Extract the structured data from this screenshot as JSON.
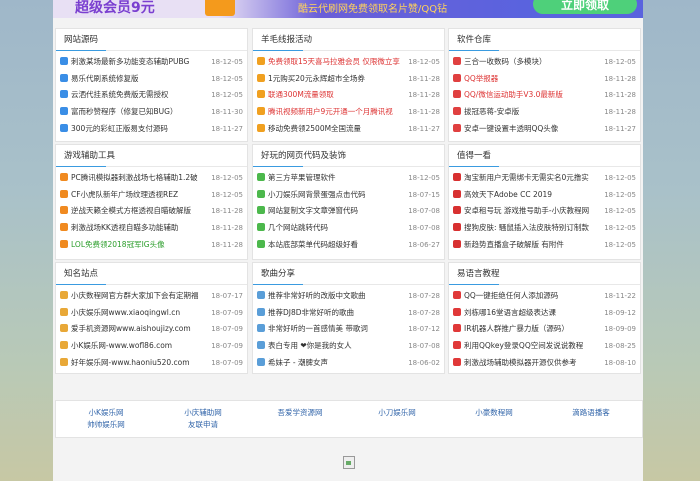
{
  "banner": {
    "title": "超级会员9元",
    "text": "酷云代刷网免费领取名片赞/QQ钻",
    "button": "立即领取"
  },
  "panels": [
    {
      "title": "网站源码",
      "icon": "#3a8ee6",
      "items": [
        {
          "text": "刺激某场最新多功能变态辅助PUBG",
          "date": "18-12-05"
        },
        {
          "text": "易乐代刷系统修复版",
          "date": "18-12-05"
        },
        {
          "text": "云洒代挂系统免费版无需授权",
          "date": "18-12-05"
        },
        {
          "text": "富而秒赞程序（修复已知BUG）",
          "date": "18-11-30"
        },
        {
          "text": "300元的彩虹正版易支付源码",
          "date": "18-11-27"
        }
      ]
    },
    {
      "title": "羊毛线报活动",
      "icon": "#f0a020",
      "items": [
        {
          "text": "免费领取15天喜马拉雅会员 仅限微立享",
          "date": "18-12-05",
          "color": "#d33"
        },
        {
          "text": "1元购买20元永辉超市全场券",
          "date": "18-11-28"
        },
        {
          "text": "联通300M流量领取",
          "date": "18-11-28",
          "color": "#d33"
        },
        {
          "text": "腾讯视频新用户9元开通一个月腾讯视",
          "date": "18-11-28",
          "color": "#d33"
        },
        {
          "text": "移动免费领2500M全国流量",
          "date": "18-11-27"
        }
      ]
    },
    {
      "title": "软件仓库",
      "icon": "#e04040",
      "items": [
        {
          "text": "三合一收数码（多模块）",
          "date": "18-12-05"
        },
        {
          "text": "QQ举报器",
          "date": "18-11-28",
          "color": "#d33"
        },
        {
          "text": "QQ/微信运动助手V3.0最新版",
          "date": "18-11-28",
          "color": "#d33"
        },
        {
          "text": "拔冠恶蒋-安卓版",
          "date": "18-11-28"
        },
        {
          "text": "安卓一键设置丰透明QQ头像",
          "date": "18-11-27"
        }
      ]
    },
    {
      "title": "游戏辅助工具",
      "icon": "#f08a20",
      "items": [
        {
          "text": "PC腾讯模拟器刺激战场七格辅助1.2破",
          "date": "18-12-05"
        },
        {
          "text": "CF小虎队新年广场纹理透视REZ",
          "date": "18-12-05"
        },
        {
          "text": "逆战天籁全模式方框透视自瞄破解版",
          "date": "18-11-28"
        },
        {
          "text": "刺激战场KK透视自瞄多功能辅助",
          "date": "18-11-28"
        },
        {
          "text": "LOL免费领2018冠军IG头像",
          "date": "18-11-28",
          "color": "#2a9d2a"
        }
      ]
    },
    {
      "title": "好玩的网页代码及装饰",
      "icon": "#4cb84c",
      "items": [
        {
          "text": "第三方苹果管理软件",
          "date": "18-12-05"
        },
        {
          "text": "小刀娱乐网背景蛋强点击代码",
          "date": "18-07-15"
        },
        {
          "text": "网站复制文字文章弹窗代码",
          "date": "18-07-08"
        },
        {
          "text": "几个网站跳转代码",
          "date": "18-07-08"
        },
        {
          "text": "本站底部菜单代码超级好看",
          "date": "18-06-27"
        }
      ]
    },
    {
      "title": "值得一看",
      "icon": "#d83030",
      "items": [
        {
          "text": "淘宝新用户无需绑卡无需实名0元撸实",
          "date": "18-12-05"
        },
        {
          "text": "高效天下Adobe CC 2019",
          "date": "18-12-05"
        },
        {
          "text": "安卓租号玩 游戏推号助手-小庆教程网",
          "date": "18-12-05"
        },
        {
          "text": "搜狗皮肤: 騷鼠插入法皮肤特别订制款",
          "date": "18-12-05"
        },
        {
          "text": "新趋势直播盒子破解版 有附件",
          "date": "18-12-05"
        }
      ]
    },
    {
      "title": "知名站点",
      "icon": "#e8a838",
      "items": [
        {
          "text": "小庆数程网官方群大家加下会有定期福",
          "date": "18-07-17"
        },
        {
          "text": "小庆娱乐网www.xiaoqingwl.cn",
          "date": "18-07-09"
        },
        {
          "text": "爱手机资源网www.aishoujizy.com",
          "date": "18-07-09"
        },
        {
          "text": "小K娱乐网-www.wofl86.com",
          "date": "18-07-09"
        },
        {
          "text": "好年娱乐网-www.haoniu520.com",
          "date": "18-07-09"
        }
      ]
    },
    {
      "title": "歌曲分享",
      "icon": "#5a9ed8",
      "items": [
        {
          "text": "推荐非常好听的改版中文歌曲",
          "date": "18-07-28"
        },
        {
          "text": "推荐DJ8D非常好听的歌曲",
          "date": "18-07-28"
        },
        {
          "text": "非常好听的一首感情美  带歌词",
          "date": "18-07-12"
        },
        {
          "text": "表白专用 ❤你是我的女人",
          "date": "18-07-08"
        },
        {
          "text": "希妹子 - 潮脾女声",
          "date": "18-06-02"
        }
      ]
    },
    {
      "title": "易语言教程",
      "icon": "#e03838",
      "items": [
        {
          "text": "QQ一键拒绝任何人添加源码",
          "date": "18-11-22"
        },
        {
          "text": "刘栋哪16堂语言超级表达课",
          "date": "18-09-12"
        },
        {
          "text": "IR机器人群推广暴力版（源码）",
          "date": "18-09-09"
        },
        {
          "text": "利用QQkey登录QQ空间发说说教程",
          "date": "18-08-25"
        },
        {
          "text": "刺激战场辅助模拟器开源仅供参考",
          "date": "18-08-10"
        }
      ]
    }
  ],
  "links": [
    "小K娱乐网",
    "小庆辅助网",
    "吾爱学资源网",
    "小刀娱乐网",
    "小豪数程网",
    "滴路语播客",
    "帅帅娱乐网",
    "友联申请"
  ]
}
